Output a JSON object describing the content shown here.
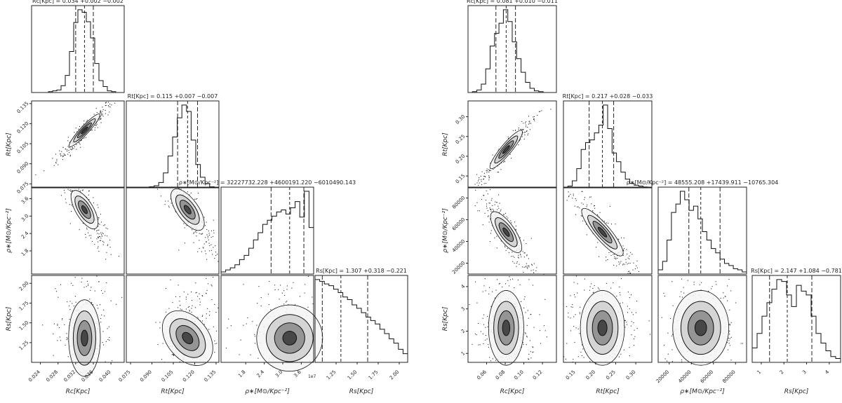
{
  "chart_data": [
    {
      "type": "corner",
      "parameters": [
        "R_c",
        "R_t",
        "rho",
        "R_s"
      ],
      "axis_labels": [
        "Rc[Kpc]",
        "Rt[Kpc]",
        "ρ∗[M⊙/Kpc⁻²]",
        "Rs[Kpc]"
      ],
      "titles": [
        "Rc[Kpc] = 0.034 +0.002 −0.002",
        "Rt[Kpc] = 0.115 +0.007 −0.007",
        "ρ∗[M⊙/Kpc⁻²] = 32227732.228 +4600191.220 −6010490.143",
        "Rs[Kpc] = 1.307 +0.318 −0.221"
      ],
      "ranges": [
        [
          0.022,
          0.043
        ],
        [
          0.072,
          0.137
        ],
        [
          10000000,
          40000000
        ],
        [
          1.0,
          2.1
        ]
      ],
      "ticks": [
        [
          "0.024",
          "0.028",
          "0.032",
          "0.036",
          "0.040"
        ],
        [
          "0.075",
          "0.090",
          "0.105",
          "0.120",
          "0.135"
        ],
        [
          "1.8",
          "2.4",
          "3.0",
          "3.6"
        ],
        [
          "1.25",
          "1.50",
          "1.75",
          "2.00"
        ]
      ],
      "tick_values": [
        [
          0.024,
          0.028,
          0.032,
          0.036,
          0.04
        ],
        [
          0.075,
          0.09,
          0.105,
          0.12,
          0.135
        ],
        [
          18000000,
          24000000,
          30000000,
          36000000
        ],
        [
          1.25,
          1.5,
          1.75,
          2.0
        ]
      ],
      "y_ticks_row1": [
        "0.075",
        "0.090",
        "0.105",
        "0.120",
        "0.135"
      ],
      "y_ticks_row2": [
        "1.8",
        "2.4",
        "3.0",
        "3.6"
      ],
      "y_ticks_row3": [
        "1.25",
        "1.50",
        "1.75",
        "2.00"
      ],
      "rho_offset": "1e7",
      "quantiles": [
        [
          0.032,
          0.034,
          0.036
        ],
        [
          0.108,
          0.115,
          0.122
        ],
        [
          26217242.085,
          32227732.228,
          36827923.448
        ],
        [
          1.086,
          1.307,
          1.625
        ]
      ],
      "hist": [
        [
          0,
          0,
          0,
          0,
          1,
          2,
          3,
          8,
          20,
          48,
          82,
          97,
          94,
          83,
          64,
          34,
          14,
          7,
          2,
          1,
          0,
          0
        ],
        [
          0,
          0,
          0,
          0,
          0,
          1,
          2,
          5,
          14,
          30,
          48,
          66,
          78,
          72,
          45,
          22,
          10,
          4,
          1,
          0
        ],
        [
          2,
          4,
          6,
          9,
          14,
          18,
          25,
          33,
          40,
          48,
          52,
          56,
          60,
          62,
          58,
          64,
          70,
          55,
          80,
          45
        ],
        [
          95,
          93,
          90,
          88,
          84,
          80,
          75,
          72,
          66,
          62,
          57,
          52,
          48,
          44,
          38,
          33,
          27,
          22,
          15,
          10
        ]
      ],
      "correlations": [
        [
          1,
          0.95,
          -0.9,
          0
        ],
        [
          0.95,
          1,
          -0.85,
          0.35
        ],
        [
          -0.9,
          -0.85,
          1,
          -0.25
        ],
        [
          0,
          0.35,
          -0.25,
          1
        ]
      ]
    },
    {
      "type": "corner",
      "parameters": [
        "R_c",
        "R_t",
        "rho",
        "R_s"
      ],
      "axis_labels": [
        "Rc[Kpc]",
        "Rt[Kpc]",
        "ρ∗[M⊙/Kpc⁻²]",
        "Rs[Kpc]"
      ],
      "titles": [
        "Rc[Kpc] = 0.081 +0.010 −0.011",
        "Rt[Kpc] = 0.217 +0.028 −0.033",
        "ρ∗[M⊙/Kpc⁻²] = 48555.208 +17439.911 −10765.304",
        "Rs[Kpc] = 2.147 +1.084 −0.781"
      ],
      "ranges": [
        [
          0.04,
          0.135
        ],
        [
          0.12,
          0.34
        ],
        [
          10000,
          90000
        ],
        [
          0.6,
          4.5
        ]
      ],
      "ticks": [
        [
          "0.06",
          "0.08",
          "0.10",
          "0.12"
        ],
        [
          "0.15",
          "0.20",
          "0.25",
          "0.30"
        ],
        [
          "20000",
          "40000",
          "60000",
          "80000"
        ],
        [
          "1",
          "2",
          "3",
          "4"
        ]
      ],
      "tick_values": [
        [
          0.06,
          0.08,
          0.1,
          0.12
        ],
        [
          0.15,
          0.2,
          0.25,
          0.3
        ],
        [
          20000,
          40000,
          60000,
          80000
        ],
        [
          1,
          2,
          3,
          4
        ]
      ],
      "y_ticks_row1": [
        "0.15",
        "0.20",
        "0.25",
        "0.30"
      ],
      "y_ticks_row2": [
        "20000",
        "40000",
        "60000",
        "80000"
      ],
      "y_ticks_row3": [
        "1",
        "2",
        "3",
        "4"
      ],
      "rho_offset": "",
      "quantiles": [
        [
          0.07,
          0.081,
          0.091
        ],
        [
          0.184,
          0.217,
          0.245
        ],
        [
          37789.904,
          48555.208,
          65995.119
        ],
        [
          1.366,
          2.147,
          3.231
        ]
      ],
      "hist": [
        [
          0,
          1,
          3,
          10,
          28,
          55,
          70,
          82,
          98,
          84,
          60,
          40,
          24,
          12,
          5,
          2,
          1,
          0,
          0,
          0
        ],
        [
          0,
          2,
          8,
          22,
          44,
          52,
          55,
          63,
          72,
          95,
          68,
          40,
          30,
          18,
          10,
          5,
          3,
          2,
          1,
          0
        ],
        [
          4,
          12,
          32,
          58,
          66,
          78,
          70,
          60,
          64,
          52,
          40,
          32,
          24,
          20,
          14,
          10,
          8,
          5,
          4,
          2
        ],
        [
          15,
          30,
          48,
          62,
          76,
          86,
          84,
          70,
          58,
          80,
          74,
          70,
          48,
          30,
          20,
          12,
          6,
          4
        ]
      ],
      "correlations": [
        [
          1,
          0.96,
          -0.9,
          0
        ],
        [
          0.96,
          1,
          -0.92,
          0
        ],
        [
          -0.9,
          -0.92,
          1,
          0
        ],
        [
          0,
          0,
          0,
          1
        ]
      ]
    }
  ]
}
